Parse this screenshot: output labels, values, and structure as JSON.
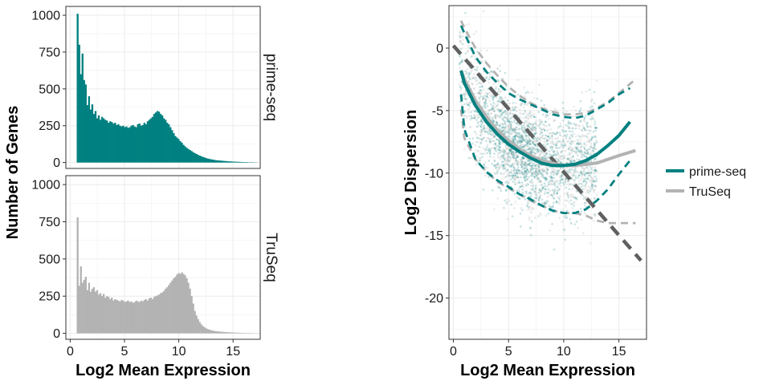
{
  "chart_data": [
    {
      "type": "bar",
      "subtype": "histogram-faceted",
      "xlabel": "Log2 Mean Expression",
      "ylabel": "Number of Genes",
      "xlim": [
        -0.4,
        17.5
      ],
      "ylim": [
        -40,
        1060
      ],
      "xticks": [
        "0",
        "5",
        "10",
        "15"
      ],
      "yticks": [
        "0",
        "250",
        "500",
        "750",
        "1000"
      ],
      "grid": true,
      "bin_width": 0.15,
      "facets": [
        {
          "name": "prime-seq",
          "color": "#008080",
          "bin_start": 0.6,
          "values": [
            1010,
            800,
            600,
            740,
            560,
            530,
            390,
            450,
            360,
            395,
            330,
            350,
            300,
            320,
            290,
            310,
            300,
            290,
            285,
            270,
            280,
            275,
            265,
            270,
            255,
            260,
            250,
            245,
            250,
            240,
            245,
            235,
            240,
            250,
            255,
            245,
            240,
            260,
            265,
            250,
            255,
            270,
            260,
            280,
            290,
            300,
            310,
            330,
            340,
            350,
            345,
            330,
            320,
            300,
            290,
            270,
            260,
            240,
            220,
            200,
            180,
            170,
            160,
            145,
            135,
            120,
            110,
            100,
            92,
            85,
            78,
            70,
            64,
            58,
            52,
            47,
            42,
            38,
            34,
            30,
            27,
            24,
            22,
            20,
            18,
            16,
            15,
            14,
            13,
            12,
            11,
            10,
            9,
            8,
            8,
            7,
            6,
            6,
            5,
            5,
            4,
            4,
            3,
            3,
            3,
            2,
            2,
            2,
            2,
            1,
            1
          ]
        },
        {
          "name": "TruSeq",
          "color": "#b3b3b3",
          "bin_start": 0.6,
          "values": [
            780,
            320,
            450,
            340,
            360,
            380,
            290,
            340,
            280,
            300,
            310,
            280,
            290,
            260,
            270,
            250,
            265,
            240,
            250,
            245,
            230,
            240,
            220,
            230,
            225,
            220,
            215,
            225,
            220,
            210,
            215,
            220,
            210,
            215,
            205,
            210,
            220,
            215,
            210,
            220,
            215,
            225,
            230,
            220,
            235,
            240,
            230,
            245,
            250,
            255,
            260,
            270,
            275,
            285,
            300,
            310,
            325,
            340,
            355,
            370,
            380,
            395,
            405,
            400,
            410,
            400,
            390,
            370,
            340,
            300,
            250,
            200,
            150,
            120,
            95,
            75,
            60,
            48,
            40,
            33,
            28,
            24,
            21,
            18,
            16,
            14,
            13,
            12,
            11,
            10,
            9,
            8,
            8,
            7,
            6,
            6,
            5,
            5,
            4,
            4,
            3,
            3,
            3,
            2,
            2,
            2,
            2,
            2,
            1,
            1,
            1,
            1
          ]
        }
      ]
    },
    {
      "type": "scatter",
      "xlabel": "Log2 Mean Expression",
      "ylabel": "Log2 Dispersion",
      "xlim": [
        -0.4,
        17.5
      ],
      "ylim": [
        -23.3,
        3.4
      ],
      "xticks": [
        "0",
        "5",
        "10",
        "15"
      ],
      "yticks": [
        "0",
        "-5",
        "-10",
        "-15",
        "-20"
      ],
      "grid": true,
      "legend_position": "right",
      "reference_line": {
        "color": "#606060",
        "dash": true,
        "points": [
          [
            0,
            0.2
          ],
          [
            17,
            -17
          ]
        ]
      },
      "series": [
        {
          "name": "prime-seq",
          "color": "#008080",
          "fit": {
            "x": [
              0.7,
              1,
              2,
              3,
              4,
              5,
              6,
              7,
              8,
              9,
              10,
              11,
              12,
              13,
              14,
              15,
              16
            ],
            "y": [
              -1.8,
              -2.8,
              -4.6,
              -5.9,
              -6.9,
              -7.7,
              -8.3,
              -8.8,
              -9.2,
              -9.4,
              -9.4,
              -9.3,
              -9.0,
              -8.5,
              -7.8,
              -7.0,
              -5.9
            ]
          },
          "upper": {
            "x": [
              0.7,
              1,
              2,
              3,
              4,
              5,
              6,
              7,
              8,
              9,
              10,
              11,
              12,
              13,
              14,
              15,
              16
            ],
            "y": [
              1.8,
              1.2,
              -0.7,
              -1.9,
              -2.8,
              -3.6,
              -4.1,
              -4.5,
              -4.9,
              -5.3,
              -5.5,
              -5.6,
              -5.4,
              -4.9,
              -4.4,
              -3.7,
              -3.2
            ]
          },
          "lower": {
            "x": [
              0.7,
              1,
              2,
              3,
              4,
              5,
              6,
              7,
              8,
              9,
              10,
              11,
              12,
              13,
              14,
              15,
              16
            ],
            "y": [
              -3.7,
              -6.5,
              -8.9,
              -9.9,
              -10.6,
              -11.1,
              -11.7,
              -12.1,
              -12.6,
              -13.0,
              -13.2,
              -13.2,
              -12.9,
              -12.2,
              -11.3,
              -10.1,
              -9.0
            ]
          }
        },
        {
          "name": "TruSeq",
          "color": "#b3b3b3",
          "fit": {
            "x": [
              0.7,
              1,
              2,
              3,
              4,
              5,
              6,
              7,
              8,
              9,
              10,
              11,
              12,
              13,
              14,
              15,
              16.5
            ],
            "y": [
              -1.8,
              -2.5,
              -4.2,
              -5.5,
              -6.6,
              -7.4,
              -8.1,
              -8.6,
              -9.0,
              -9.2,
              -9.4,
              -9.4,
              -9.3,
              -9.2,
              -8.9,
              -8.6,
              -8.2
            ]
          },
          "upper": {
            "x": [
              0.7,
              1,
              2,
              3,
              4,
              5,
              6,
              7,
              8,
              9,
              10,
              11,
              12,
              13,
              14,
              15,
              16.5
            ],
            "y": [
              2.2,
              1.6,
              0.0,
              -1.2,
              -2.2,
              -3.1,
              -3.8,
              -4.4,
              -4.8,
              -5.1,
              -5.3,
              -5.3,
              -5.2,
              -4.8,
              -4.3,
              -3.6,
              -2.5
            ]
          },
          "lower": {
            "x": [
              0.7,
              1,
              2,
              3,
              4,
              5,
              6,
              7,
              8,
              9,
              10,
              11,
              12,
              13,
              14,
              15,
              16.5
            ],
            "y": [
              -4.9,
              -7.2,
              -8.9,
              -9.9,
              -10.7,
              -11.2,
              -11.7,
              -12.2,
              -12.6,
              -13.0,
              -13.2,
              -13.2,
              -13.4,
              -13.8,
              -14.0,
              -14.0,
              -14.0
            ]
          }
        }
      ],
      "scatter_cloud": {
        "x_range": [
          0.5,
          13
        ],
        "n_points_per_series": 1400
      }
    }
  ]
}
